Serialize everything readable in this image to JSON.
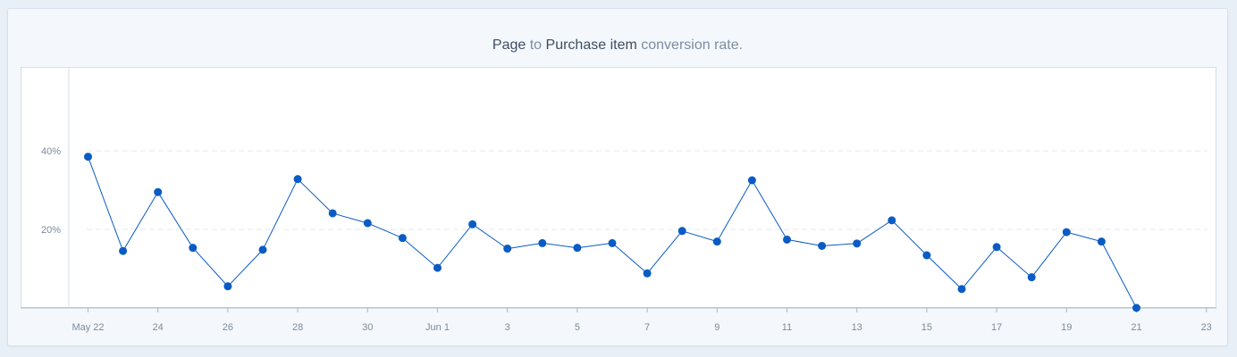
{
  "title": {
    "from_step": "Page",
    "connector": "to",
    "to_step": "Purchase item",
    "suffix": "conversion rate."
  },
  "colors": {
    "line": "#0a5bc4",
    "point": "#0a5bc4",
    "grid": "#e3e8ee"
  },
  "chart_data": {
    "type": "line",
    "title": "Page to Purchase item conversion rate.",
    "xlabel": "",
    "ylabel": "",
    "x": [
      "May 22",
      "May 23",
      "May 24",
      "May 25",
      "May 26",
      "May 27",
      "May 28",
      "May 29",
      "May 30",
      "May 31",
      "Jun 1",
      "Jun 2",
      "Jun 3",
      "Jun 4",
      "Jun 5",
      "Jun 6",
      "Jun 7",
      "Jun 8",
      "Jun 9",
      "Jun 10",
      "Jun 11",
      "Jun 12",
      "Jun 13",
      "Jun 14",
      "Jun 15",
      "Jun 16",
      "Jun 17",
      "Jun 18",
      "Jun 19",
      "Jun 20",
      "Jun 21"
    ],
    "series": [
      {
        "values": [
          38.5,
          14.5,
          29.5,
          15.3,
          5.5,
          14.8,
          32.8,
          24.1,
          21.6,
          17.8,
          10.2,
          21.3,
          15.1,
          16.5,
          15.3,
          16.5,
          8.8,
          19.6,
          16.9,
          32.5,
          17.4,
          15.8,
          16.4,
          22.3,
          13.4,
          4.8,
          15.5,
          7.8,
          19.3,
          16.9,
          0.0
        ]
      }
    ],
    "x_tick_labels": [
      "May 22",
      "24",
      "26",
      "28",
      "30",
      "Jun 1",
      "3",
      "5",
      "7",
      "9",
      "11",
      "13",
      "15",
      "17",
      "19",
      "21",
      "23"
    ],
    "y_tick_labels": [
      "20%",
      "40%"
    ],
    "y_ticks": [
      20,
      40
    ],
    "ylim": [
      0,
      61
    ],
    "grid": true,
    "grid_style": "dashed-horizontal",
    "legend": "none"
  }
}
